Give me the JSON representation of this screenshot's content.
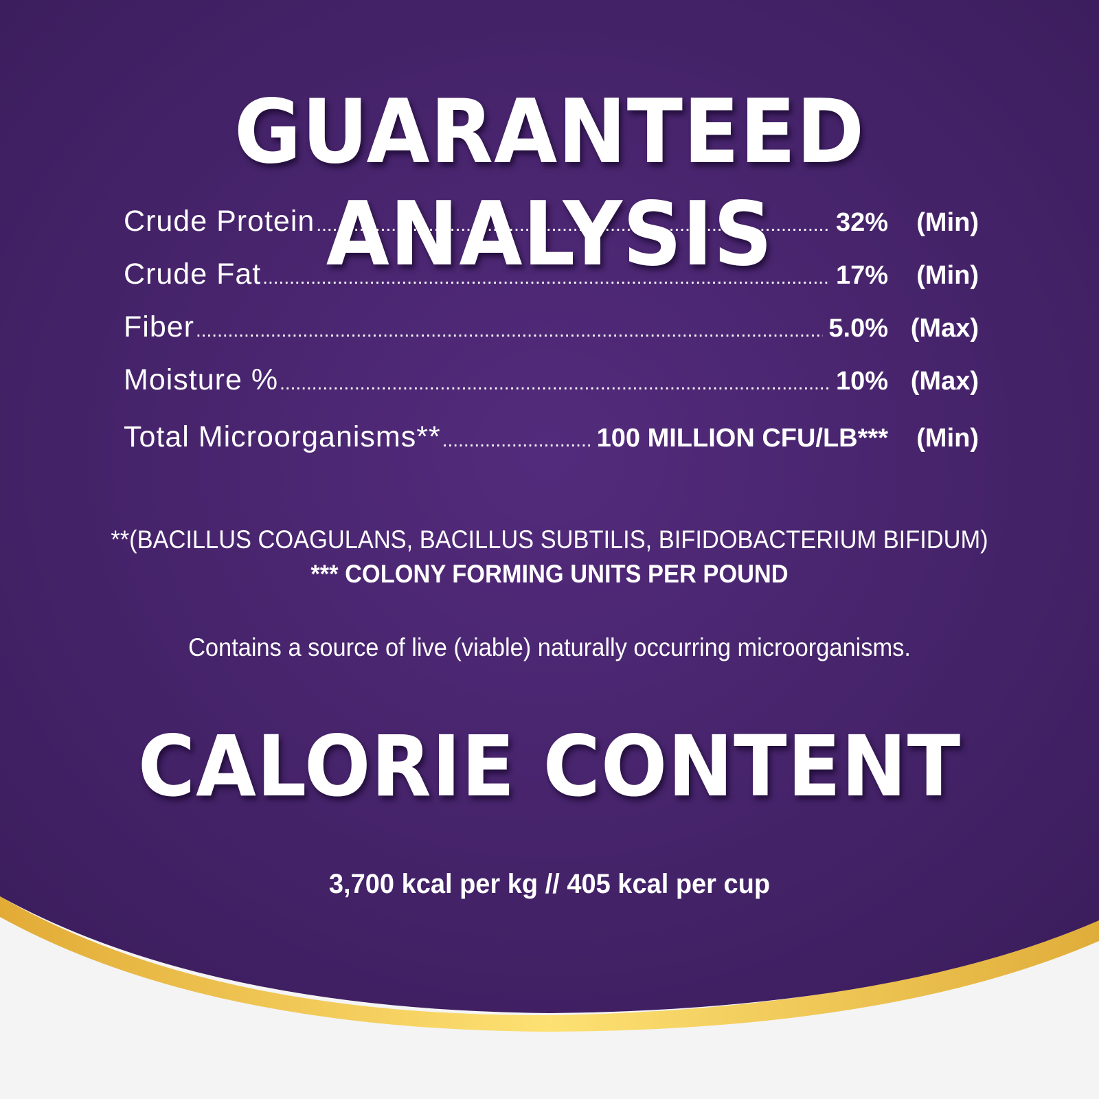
{
  "colors": {
    "purple_center": "#532b7c",
    "purple_edge": "#3b1d5c",
    "gold": "#e6b53c",
    "gold_light": "#fde173",
    "background": "#f4f4f4",
    "text": "#ffffff"
  },
  "guaranteed_analysis": {
    "title": "GUARANTEED ANALYSIS",
    "rows": [
      {
        "label": "Crude Protein",
        "value": "32%",
        "qualifier": "(Min)"
      },
      {
        "label": "Crude Fat",
        "value": "17%",
        "qualifier": "(Min)"
      },
      {
        "label": "Fiber",
        "value": "5.0%",
        "qualifier": "(Max)"
      },
      {
        "label": "Moisture %",
        "value": "10%",
        "qualifier": "(Max)"
      },
      {
        "label": "Total Microorganisms**",
        "value": "100 MILLION CFU/LB***",
        "qualifier": "(Min)"
      }
    ],
    "footnote_1": "**(BACILLUS COAGULANS, BACILLUS SUBTILIS, BIFIDOBACTERIUM BIFIDUM)",
    "footnote_2": "*** COLONY FORMING UNITS PER POUND",
    "note": "Contains a source of live (viable) naturally occurring microorganisms."
  },
  "calorie_content": {
    "title": "CALORIE CONTENT",
    "value": "3,700 kcal per kg //  405 kcal per cup"
  }
}
